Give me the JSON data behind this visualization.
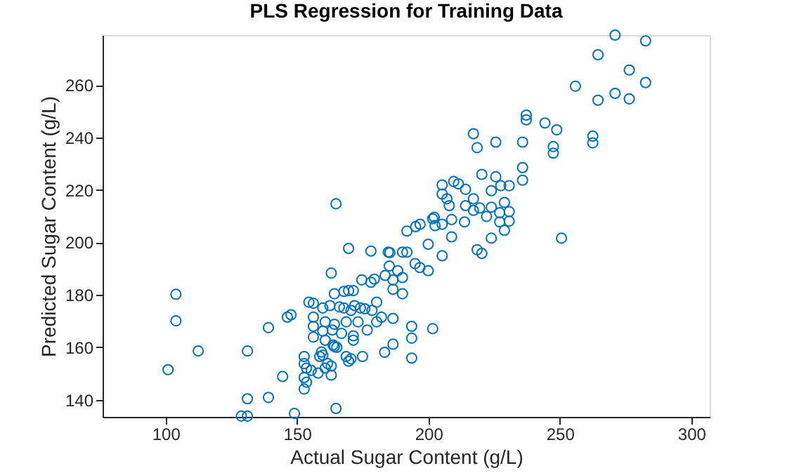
{
  "chart_data": {
    "type": "scatter",
    "title": "PLS Regression for Training Data",
    "xlabel": "Actual Sugar Content (g/L)",
    "ylabel": "Predicted Sugar Content (g/L)",
    "xlim": [
      76,
      307
    ],
    "ylim": [
      133.5,
      279
    ],
    "xticks": [
      100,
      150,
      200,
      250,
      300
    ],
    "yticks": [
      140,
      160,
      180,
      200,
      220,
      240,
      260
    ],
    "grid": false,
    "marker": "circle",
    "series": [
      {
        "color": "#0072bd",
        "x": [
          103.9,
          103.9,
          112.4,
          100.9,
          131.1,
          139.1,
          146.3,
          147.7,
          144.5,
          131.1,
          139.1,
          149,
          128.8,
          131.1,
          164.8,
          164.8,
          163,
          169.6,
          178.1,
          184.7,
          185.3,
          190.1,
          191.8,
          191.8,
          195.1,
          196.8,
          201.6,
          199.9,
          194.9,
          196.7,
          199.9,
          185.1,
          188.3,
          190.1,
          174.6,
          178.1,
          179.4,
          183.5,
          186.5,
          186.5,
          190.1,
          164.2,
          167.8,
          169.6,
          171.4,
          154.5,
          156.2,
          159.8,
          162.5,
          166.1,
          167.8,
          170.5,
          174.1,
          175.8,
          178.5,
          182.1,
          186.5,
          156.2,
          160.7,
          164.2,
          168.7,
          173.2,
          176.7,
          180.3,
          156.2,
          159.8,
          163.4,
          166.9,
          171.4,
          156.2,
          160.7,
          163.7,
          165.1,
          171.4,
          159.3,
          159.8,
          158.6,
          152.7,
          152.7,
          153.6,
          152.7,
          153.6,
          152.7,
          155.4,
          158,
          160.7,
          161.6,
          163,
          163,
          168.7,
          170.5,
          174.9,
          169.6,
          164.2,
          183.3,
          186.5,
          193.6,
          193.6,
          193.6,
          201.6,
          171.9,
          180.3,
          271,
          282.6,
          264.5,
          276.4,
          282.6,
          255.9,
          264.5,
          271,
          276.4,
          237.2,
          237.2,
          244.3,
          248.8,
          262.5,
          262.5,
          247.5,
          247.5,
          217.1,
          218.5,
          225.6,
          235.8,
          235.8,
          235.8,
          220.3,
          225.6,
          227.5,
          230.7,
          223.9,
          205.2,
          209.6,
          211.4,
          214.1,
          205.2,
          207,
          207.9,
          217.1,
          214.1,
          219.5,
          223.9,
          228.9,
          217.1,
          222.1,
          227.1,
          230.7,
          227.1,
          230.7,
          228.9,
          202.2,
          202.5,
          205.2,
          208.8,
          213.7,
          223.9,
          208.8,
          205.2,
          218.5,
          220.3,
          250.6
        ],
        "values": [
          180.2,
          170.1,
          158.6,
          151.5,
          158.6,
          167.5,
          171.5,
          172.4,
          148.9,
          140.4,
          140.9,
          134.8,
          133.8,
          133.8,
          214.7,
          136.7,
          188.3,
          197.7,
          196.7,
          196.3,
          196.1,
          196.3,
          196.3,
          204.3,
          206,
          206.9,
          209,
          199.3,
          191.9,
          190.4,
          189.2,
          191,
          189.2,
          186.6,
          185.7,
          184.8,
          186,
          187.4,
          185.7,
          182.1,
          180.4,
          180.4,
          181.3,
          181.6,
          181.6,
          177.2,
          176.8,
          175,
          175.9,
          175.4,
          175,
          174.1,
          175,
          174.7,
          174.1,
          171.5,
          171,
          171.5,
          169.7,
          168.8,
          169.7,
          169.7,
          166.6,
          169.7,
          168,
          166.2,
          166.6,
          165.3,
          164.4,
          163.9,
          162.7,
          160.9,
          160,
          162.7,
          158.2,
          157,
          156.5,
          156.5,
          153.8,
          152.1,
          148.5,
          146.7,
          144.1,
          151.2,
          150.2,
          152.1,
          153.8,
          152.9,
          149.4,
          156.5,
          155.6,
          156.5,
          154.7,
          160.3,
          158.1,
          161.2,
          168,
          163.5,
          155.9,
          167.1,
          175.9,
          177.2,
          279,
          276.8,
          271.5,
          265.7,
          260.9,
          259.5,
          254.2,
          256.8,
          254.7,
          248.5,
          246.7,
          245.5,
          242.9,
          240.5,
          237.9,
          236.5,
          234,
          241.4,
          236.1,
          238.2,
          238.2,
          228.5,
          223.7,
          225.9,
          225,
          221.6,
          221.6,
          219.7,
          221.9,
          223.2,
          222.3,
          220.2,
          218.4,
          216.6,
          214,
          216.6,
          214,
          213.1,
          213.4,
          215.2,
          212.2,
          209.9,
          211.3,
          211.7,
          207.8,
          208.1,
          204.6,
          209.6,
          206.4,
          206.9,
          208.7,
          207.8,
          201.6,
          202.1,
          194.9,
          197.2,
          195.8,
          201.6
        ]
      }
    ]
  }
}
